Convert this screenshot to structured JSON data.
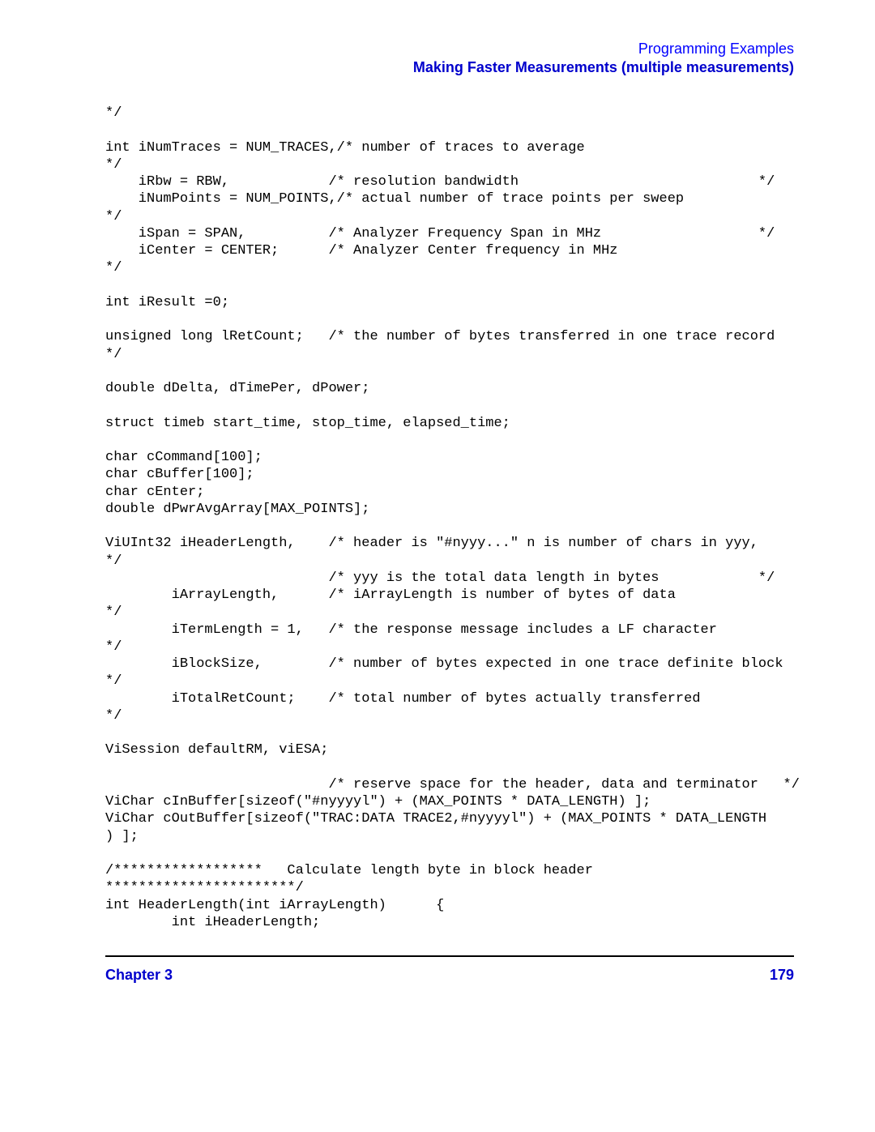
{
  "header": {
    "line1": "Programming Examples",
    "line2": "Making Faster Measurements (multiple measurements)"
  },
  "code": "*/\n\nint iNumTraces = NUM_TRACES,/* number of traces to average\n*/\n    iRbw = RBW,            /* resolution bandwidth                             */\n    iNumPoints = NUM_POINTS,/* actual number of trace points per sweep\n*/\n    iSpan = SPAN,          /* Analyzer Frequency Span in MHz                   */\n    iCenter = CENTER;      /* Analyzer Center frequency in MHz\n*/\n\nint iResult =0;\n\nunsigned long lRetCount;   /* the number of bytes transferred in one trace record\n*/\n\ndouble dDelta, dTimePer, dPower;\n\nstruct timeb start_time, stop_time, elapsed_time;\n\nchar cCommand[100];\nchar cBuffer[100];\nchar cEnter;\ndouble dPwrAvgArray[MAX_POINTS];\n\nViUInt32 iHeaderLength,    /* header is \"#nyyy...\" n is number of chars in yyy,\n*/\n                           /* yyy is the total data length in bytes            */\n        iArrayLength,      /* iArrayLength is number of bytes of data\n*/\n        iTermLength = 1,   /* the response message includes a LF character\n*/\n        iBlockSize,        /* number of bytes expected in one trace definite block\n*/\n        iTotalRetCount;    /* total number of bytes actually transferred\n*/\n\nViSession defaultRM, viESA;\n\n                           /* reserve space for the header, data and terminator   */\nViChar cInBuffer[sizeof(\"#nyyyyl\") + (MAX_POINTS * DATA_LENGTH) ];\nViChar cOutBuffer[sizeof(\"TRAC:DATA TRACE2,#nyyyyl\") + (MAX_POINTS * DATA_LENGTH\n) ];\n\n/******************   Calculate length byte in block header\n***********************/\nint HeaderLength(int iArrayLength)      {\n        int iHeaderLength;",
  "footer": {
    "chapter": "Chapter 3",
    "page": "179"
  }
}
